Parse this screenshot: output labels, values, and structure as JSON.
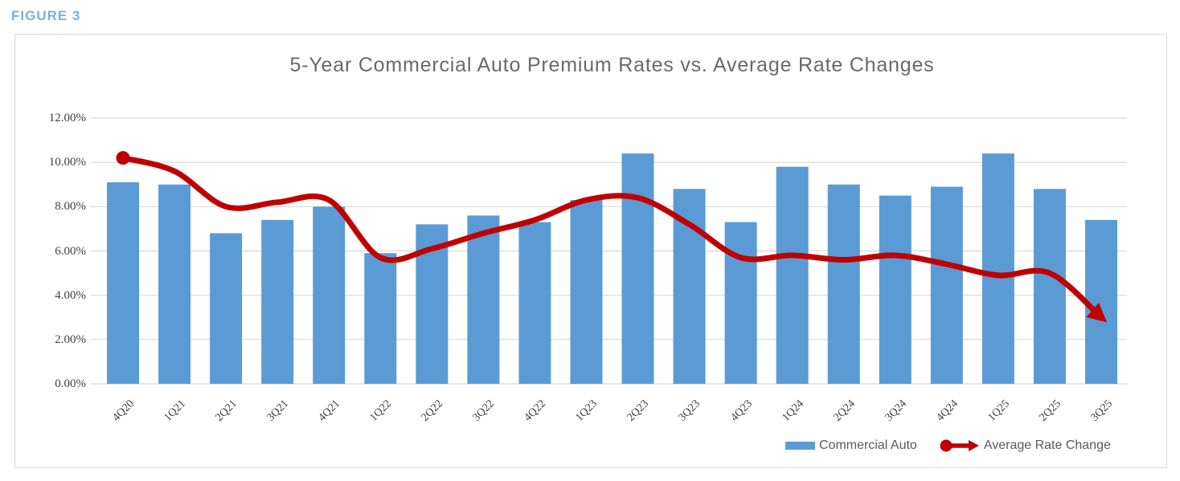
{
  "figure_label": "FIGURE 3",
  "chart_data": {
    "type": "bar",
    "subtype": "bar-line-combo",
    "title": "5-Year Commercial Auto Premium Rates vs. Average Rate Changes",
    "categories": [
      "4Q20",
      "1Q21",
      "2Q21",
      "3Q21",
      "4Q21",
      "1Q22",
      "2Q22",
      "3Q22",
      "4Q22",
      "1Q23",
      "2Q23",
      "3Q23",
      "4Q23",
      "1Q24",
      "2Q24",
      "3Q24",
      "4Q24",
      "1Q25",
      "2Q25",
      "3Q25"
    ],
    "series": [
      {
        "name": "Commercial Auto",
        "type": "bar",
        "color": "#5B9BD5",
        "values": [
          9.1,
          9.0,
          6.8,
          7.4,
          8.0,
          5.9,
          7.2,
          7.6,
          7.3,
          8.3,
          10.4,
          8.8,
          7.3,
          9.8,
          9.0,
          8.5,
          8.9,
          10.4,
          8.8,
          7.4
        ]
      },
      {
        "name": "Average Rate Change",
        "type": "line",
        "color": "#C00000",
        "smooth": true,
        "start_marker": "circle",
        "end_marker": "arrow",
        "values": [
          10.2,
          9.6,
          8.0,
          8.2,
          8.3,
          5.7,
          6.1,
          6.8,
          7.4,
          8.3,
          8.4,
          7.2,
          5.7,
          5.8,
          5.6,
          5.8,
          5.4,
          4.9,
          5.0,
          3.0
        ]
      }
    ],
    "unit": "percent",
    "ylim": [
      0,
      12
    ],
    "y_tick_labels": [
      "0.00%",
      "2.00%",
      "4.00%",
      "6.00%",
      "8.00%",
      "10.00%",
      "12.00%"
    ],
    "xlabel": "",
    "ylabel": "",
    "grid": true,
    "legend_position": "bottom-right",
    "colors": {
      "bar": "#5B9BD5",
      "line": "#C00000",
      "grid": "#D9D9D9",
      "axis_text": "#404040",
      "title_text": "#696969",
      "figure_label": "#79B1DE",
      "legend_text": "#595959",
      "border": "#D9D9D9",
      "background": "#FFFFFF"
    }
  }
}
